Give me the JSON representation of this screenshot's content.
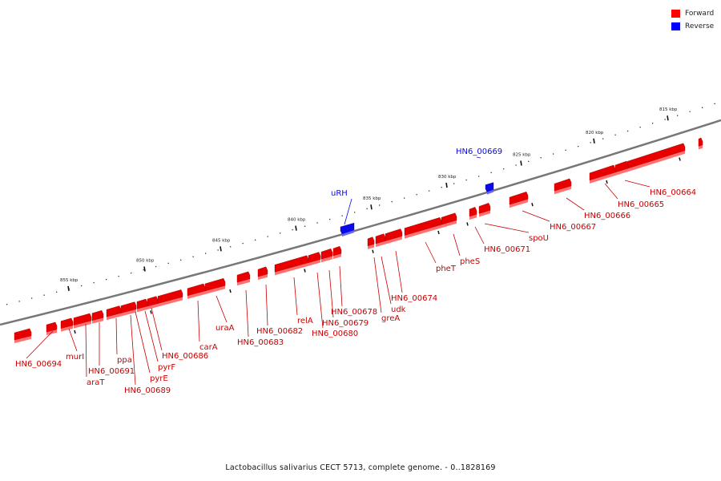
{
  "legend": {
    "forward": {
      "label": "Forward",
      "color": "#ff0000"
    },
    "reverse": {
      "label": "Reverse",
      "color": "#0000ff"
    }
  },
  "caption": "Lactobacillus salivarius CECT 5713, complete genome. - 0..1828169",
  "colors": {
    "backbone": "#777777",
    "forward_gene": "#e80000",
    "reverse_gene": "#0a0ae6"
  },
  "scale_labels": [
    "815 kbp",
    "820 kbp",
    "825 kbp",
    "830 kbp",
    "835 kbp",
    "840 kbp",
    "845 kbp",
    "850 kbp",
    "855 kbp"
  ],
  "gene_labels": [
    {
      "name": "HN6_00664",
      "strand": "forward"
    },
    {
      "name": "HN6_00665",
      "strand": "forward"
    },
    {
      "name": "HN6_00666",
      "strand": "forward"
    },
    {
      "name": "HN6_00667",
      "strand": "forward"
    },
    {
      "name": "spoU",
      "strand": "forward"
    },
    {
      "name": "HN6_00669",
      "strand": "reverse"
    },
    {
      "name": "HN6_00671",
      "strand": "forward"
    },
    {
      "name": "pheS",
      "strand": "forward"
    },
    {
      "name": "pheT",
      "strand": "forward"
    },
    {
      "name": "HN6_00674",
      "strand": "forward"
    },
    {
      "name": "udk",
      "strand": "forward"
    },
    {
      "name": "greA",
      "strand": "forward"
    },
    {
      "name": "uRH",
      "strand": "reverse"
    },
    {
      "name": "HN6_00678",
      "strand": "forward"
    },
    {
      "name": "HN6_00679",
      "strand": "forward"
    },
    {
      "name": "HN6_00680",
      "strand": "forward"
    },
    {
      "name": "relA",
      "strand": "forward"
    },
    {
      "name": "HN6_00682",
      "strand": "forward"
    },
    {
      "name": "HN6_00683",
      "strand": "forward"
    },
    {
      "name": "uraA",
      "strand": "forward"
    },
    {
      "name": "carA",
      "strand": "forward"
    },
    {
      "name": "HN6_00686",
      "strand": "forward"
    },
    {
      "name": "pyrF",
      "strand": "forward"
    },
    {
      "name": "pyrE",
      "strand": "forward"
    },
    {
      "name": "HN6_00689",
      "strand": "forward"
    },
    {
      "name": "ppa",
      "strand": "forward"
    },
    {
      "name": "HN6_00691",
      "strand": "forward"
    },
    {
      "name": "araT",
      "strand": "forward"
    },
    {
      "name": "murI",
      "strand": "forward"
    },
    {
      "name": "HN6_00694",
      "strand": "forward"
    }
  ]
}
